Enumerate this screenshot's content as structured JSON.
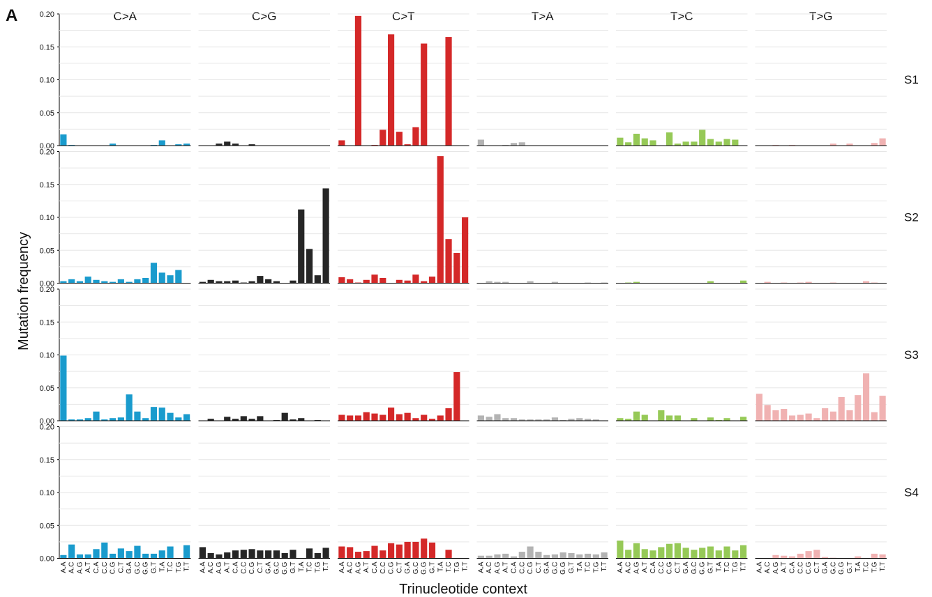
{
  "panel_letter": "A",
  "chart_data": {
    "type": "bar",
    "xlabel": "Trinucleotide context",
    "ylabel": "Mutation frequency",
    "ylim": [
      0,
      0.2
    ],
    "yticks": [
      "0.00",
      "0.05",
      "0.10",
      "0.15",
      "0.20"
    ],
    "grid": true,
    "categories": [
      "A.A",
      "A.C",
      "A.G",
      "A.T",
      "C.A",
      "C.C",
      "C.G",
      "C.T",
      "G.A",
      "G.C",
      "G.G",
      "G.T",
      "T.A",
      "T.C",
      "T.G",
      "T.T"
    ],
    "mutation_types": [
      "C>A",
      "C>G",
      "C>T",
      "T>A",
      "T>C",
      "T>G"
    ],
    "colors": {
      "C>A": "#1a9bcd",
      "C>G": "#262626",
      "C>T": "#d42828",
      "T>A": "#b3b3b3",
      "T>C": "#96c957",
      "T>G": "#f0b2b2"
    },
    "samples": [
      {
        "name": "S1",
        "values": {
          "C>A": [
            0.017,
            0.001,
            0,
            0,
            0,
            0,
            0.003,
            0,
            0,
            0,
            0,
            0.001,
            0.008,
            0,
            0.002,
            0.003
          ],
          "C>G": [
            0,
            0,
            0.003,
            0.006,
            0.003,
            0,
            0.002,
            0,
            0,
            0,
            0,
            0,
            0,
            0,
            0,
            0
          ],
          "C>T": [
            0.008,
            0,
            0.197,
            0,
            0.001,
            0.024,
            0.169,
            0.021,
            0.002,
            0.028,
            0.155,
            0,
            0,
            0.165,
            0,
            0
          ],
          "T>A": [
            0.009,
            0,
            0,
            0.001,
            0.004,
            0.005,
            0,
            0,
            0,
            0,
            0,
            0,
            0,
            0,
            0,
            0
          ],
          "T>C": [
            0.012,
            0.005,
            0.018,
            0.011,
            0.008,
            0,
            0.02,
            0.003,
            0.006,
            0.006,
            0.024,
            0.01,
            0.006,
            0.01,
            0.009,
            0
          ],
          "T>G": [
            0,
            0,
            0.001,
            0,
            0.001,
            0,
            0,
            0,
            0,
            0.003,
            0,
            0.003,
            0,
            0,
            0.004,
            0.011
          ]
        }
      },
      {
        "name": "S2",
        "values": {
          "C>A": [
            0.003,
            0.006,
            0.003,
            0.01,
            0.005,
            0.003,
            0.002,
            0.006,
            0.002,
            0.006,
            0.008,
            0.031,
            0.016,
            0.012,
            0.02,
            0
          ],
          "C>G": [
            0.002,
            0.005,
            0.003,
            0.003,
            0.004,
            0.001,
            0.003,
            0.011,
            0.006,
            0.003,
            0,
            0.004,
            0.112,
            0.052,
            0.012,
            0.144
          ],
          "C>T": [
            0.009,
            0.006,
            0.001,
            0.005,
            0.013,
            0.008,
            0,
            0.005,
            0.004,
            0.013,
            0.003,
            0.01,
            0.193,
            0.067,
            0.046,
            0.1
          ],
          "T>A": [
            0,
            0.003,
            0.002,
            0.002,
            0,
            0,
            0.003,
            0,
            0,
            0.002,
            0,
            0,
            0,
            0.001,
            0,
            0.001
          ],
          "T>C": [
            0,
            0.001,
            0.002,
            0,
            0,
            0,
            0,
            0,
            0,
            0,
            0,
            0.003,
            0,
            0,
            0,
            0.004
          ],
          "T>G": [
            0,
            0.002,
            0,
            0.001,
            0,
            0.001,
            0.002,
            0,
            0,
            0.001,
            0,
            0,
            0,
            0.003,
            0.001,
            0
          ]
        }
      },
      {
        "name": "S3",
        "values": {
          "C>A": [
            0.099,
            0.002,
            0.002,
            0.004,
            0.014,
            0.002,
            0.004,
            0.005,
            0.04,
            0.014,
            0.004,
            0.021,
            0.02,
            0.012,
            0.005,
            0.01
          ],
          "C>G": [
            0,
            0.003,
            0,
            0.006,
            0.003,
            0.007,
            0.003,
            0.007,
            0,
            0.001,
            0.012,
            0.002,
            0.004,
            0,
            0.001,
            0
          ],
          "C>T": [
            0.009,
            0.008,
            0.008,
            0.013,
            0.011,
            0.009,
            0.02,
            0.01,
            0.012,
            0.004,
            0.009,
            0.003,
            0.008,
            0.019,
            0.074,
            0
          ],
          "T>A": [
            0.008,
            0.006,
            0.01,
            0.004,
            0.004,
            0.002,
            0.002,
            0.002,
            0.002,
            0.005,
            0.001,
            0.003,
            0.004,
            0.003,
            0.002,
            0
          ],
          "T>C": [
            0.004,
            0.003,
            0.014,
            0.009,
            0,
            0.016,
            0.008,
            0.008,
            0,
            0.004,
            0,
            0.005,
            0.001,
            0.004,
            0,
            0.006
          ],
          "T>G": [
            0.041,
            0.024,
            0.016,
            0.018,
            0.008,
            0.009,
            0.011,
            0.004,
            0.019,
            0.014,
            0.036,
            0.016,
            0.039,
            0.072,
            0.013,
            0.038
          ]
        }
      },
      {
        "name": "S4",
        "values": {
          "C>A": [
            0.005,
            0.021,
            0.006,
            0.006,
            0.014,
            0.024,
            0.007,
            0.015,
            0.011,
            0.019,
            0.007,
            0.007,
            0.012,
            0.018,
            0,
            0.02
          ],
          "C>G": [
            0.017,
            0.008,
            0.006,
            0.009,
            0.012,
            0.013,
            0.014,
            0.012,
            0.012,
            0.012,
            0.008,
            0.013,
            0,
            0.015,
            0.008,
            0.016
          ],
          "C>T": [
            0.018,
            0.017,
            0.01,
            0.011,
            0.019,
            0.012,
            0.023,
            0.021,
            0.025,
            0.025,
            0.03,
            0.024,
            0,
            0.013,
            0,
            0
          ],
          "T>A": [
            0.004,
            0.004,
            0.006,
            0.007,
            0.003,
            0.01,
            0.018,
            0.01,
            0.005,
            0.006,
            0.009,
            0.008,
            0.006,
            0.007,
            0.006,
            0.009
          ],
          "T>C": [
            0.027,
            0.013,
            0.023,
            0.014,
            0.012,
            0.017,
            0.022,
            0.023,
            0.016,
            0.013,
            0.016,
            0.018,
            0.012,
            0.018,
            0.012,
            0.02
          ],
          "T>G": [
            0,
            0,
            0.005,
            0.004,
            0.003,
            0.007,
            0.011,
            0.013,
            0.002,
            0.001,
            0,
            0,
            0.003,
            0,
            0.007,
            0.006
          ]
        }
      }
    ]
  }
}
